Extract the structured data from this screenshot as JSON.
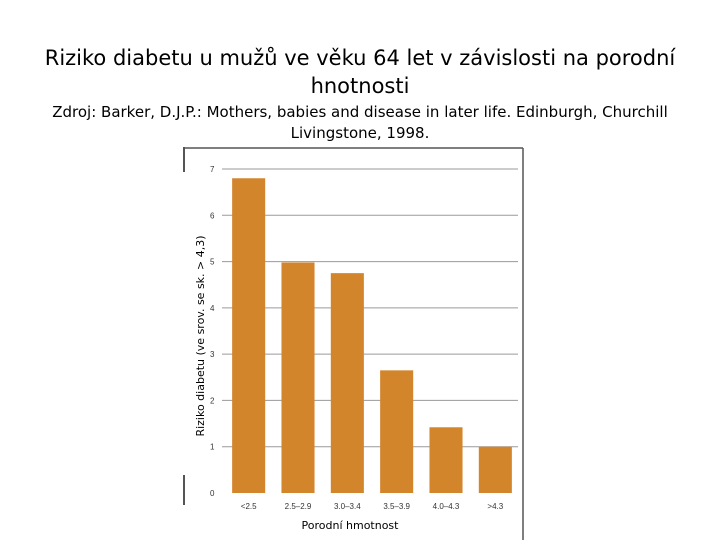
{
  "slide": {
    "title": "Riziko diabetu u mužů ve věku 64 let v závislosti na porodní hnotnosti",
    "source": "Zdroj: Barker, D.J.P.: Mothers, babies and disease in later life. Edinburgh, Churchill Livingstone, 1998."
  },
  "chart_data": {
    "type": "bar",
    "title": "",
    "xlabel": "Porodní hmotnost",
    "ylabel": "Riziko diabetu (ve srov. se sk. > 4,3)",
    "categories": [
      "<2.5",
      "2.5–2.9",
      "3.0–3.4",
      "3.5–3.9",
      "4.0–4.3",
      ">4.3"
    ],
    "values": [
      6.8,
      4.98,
      4.75,
      2.65,
      1.42,
      1.0
    ],
    "yticks": [
      "0",
      "1",
      "2",
      "3",
      "4",
      "5",
      "6",
      "7"
    ],
    "ylim": [
      0,
      7
    ],
    "grid": true,
    "legend": "none",
    "bar_color": "#d3852c",
    "grid_color": "#9a9a9a"
  }
}
